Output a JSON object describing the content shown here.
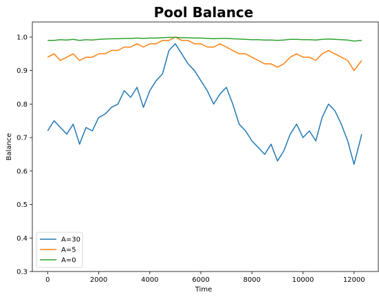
{
  "chart_data": {
    "type": "line",
    "title": "Pool Balance",
    "xlabel": "Time",
    "ylabel": "Balance",
    "xlim": [
      -600,
      12950
    ],
    "ylim": [
      0.3,
      1.045
    ],
    "xticks": [
      0,
      2000,
      4000,
      6000,
      8000,
      10000,
      12000
    ],
    "xtick_labels": [
      "0",
      "2000",
      "4000",
      "6000",
      "8000",
      "10000",
      "12000"
    ],
    "yticks": [
      0.3,
      0.4,
      0.5,
      0.6,
      0.7,
      0.8,
      0.9,
      1.0
    ],
    "ytick_labels": [
      "0.3",
      "0.4",
      "0.5",
      "0.6",
      "0.7",
      "0.8",
      "0.9",
      "1.0"
    ],
    "grid": false,
    "legend_position": "lower-left",
    "x": [
      0,
      250,
      500,
      750,
      1000,
      1250,
      1500,
      1750,
      2000,
      2250,
      2500,
      2750,
      3000,
      3250,
      3500,
      3750,
      4000,
      4250,
      4500,
      4750,
      5000,
      5250,
      5500,
      5750,
      6000,
      6250,
      6500,
      6750,
      7000,
      7250,
      7500,
      7750,
      8000,
      8250,
      8500,
      8750,
      9000,
      9250,
      9500,
      9750,
      10000,
      10250,
      10500,
      10750,
      11000,
      11250,
      11500,
      11750,
      12000,
      12300
    ],
    "series": [
      {
        "name": "A=30",
        "color": "#1f77b4",
        "values": [
          0.72,
          0.75,
          0.73,
          0.71,
          0.74,
          0.68,
          0.73,
          0.72,
          0.76,
          0.77,
          0.79,
          0.8,
          0.84,
          0.82,
          0.85,
          0.79,
          0.84,
          0.87,
          0.89,
          0.96,
          0.98,
          0.95,
          0.92,
          0.9,
          0.87,
          0.84,
          0.8,
          0.83,
          0.85,
          0.8,
          0.74,
          0.72,
          0.69,
          0.67,
          0.65,
          0.68,
          0.63,
          0.66,
          0.71,
          0.74,
          0.7,
          0.72,
          0.69,
          0.76,
          0.8,
          0.78,
          0.74,
          0.69,
          0.62,
          0.71
        ]
      },
      {
        "name": "A=5",
        "color": "#ff7f0e",
        "values": [
          0.94,
          0.95,
          0.93,
          0.94,
          0.95,
          0.93,
          0.94,
          0.94,
          0.95,
          0.95,
          0.96,
          0.96,
          0.97,
          0.97,
          0.98,
          0.97,
          0.98,
          0.98,
          0.99,
          0.99,
          1.0,
          0.99,
          0.99,
          0.98,
          0.98,
          0.97,
          0.97,
          0.98,
          0.97,
          0.96,
          0.95,
          0.95,
          0.94,
          0.93,
          0.92,
          0.92,
          0.91,
          0.92,
          0.94,
          0.95,
          0.94,
          0.94,
          0.93,
          0.95,
          0.96,
          0.95,
          0.94,
          0.93,
          0.9,
          0.93
        ]
      },
      {
        "name": "A=0",
        "color": "#2ca02c",
        "values": [
          0.99,
          0.99,
          0.992,
          0.991,
          0.993,
          0.99,
          0.992,
          0.991,
          0.993,
          0.994,
          0.995,
          0.995,
          0.996,
          0.996,
          0.997,
          0.996,
          0.997,
          0.997,
          0.998,
          0.999,
          0.999,
          0.998,
          0.998,
          0.997,
          0.997,
          0.996,
          0.995,
          0.996,
          0.996,
          0.995,
          0.994,
          0.993,
          0.992,
          0.992,
          0.991,
          0.991,
          0.99,
          0.991,
          0.993,
          0.993,
          0.992,
          0.992,
          0.991,
          0.993,
          0.994,
          0.993,
          0.992,
          0.991,
          0.988,
          0.99
        ]
      }
    ]
  }
}
